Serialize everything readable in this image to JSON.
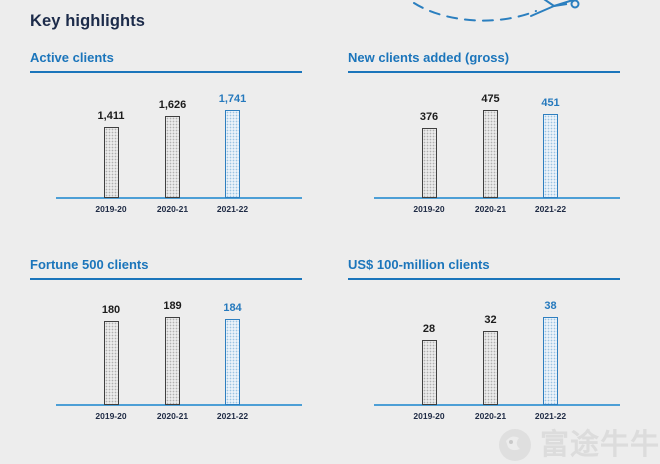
{
  "page": {
    "title": "Key highlights",
    "background": "#ededed"
  },
  "decoration": {
    "icon": "dashed-flight-path-plane-icon",
    "color": "#2b7fbf"
  },
  "watermark": {
    "text": "富途牛牛",
    "logo_icon": "futu-bull-logo-icon"
  },
  "colors": {
    "heading_navy": "#1c2b4a",
    "title_blue": "#1b75bb",
    "axis_blue": "#4d9fd6",
    "bar_outline_gray": "#3f3f3f",
    "bar_outline_blue": "#2e7fc0",
    "value_dark": "#1c1c1c",
    "value_blue": "#2579bd",
    "tick_dark": "#1e2a44"
  },
  "chart_data": [
    {
      "type": "bar",
      "title": "Active clients",
      "categories": [
        "2019-20",
        "2020-21",
        "2021-22"
      ],
      "values": [
        1411,
        1626,
        1741
      ],
      "value_labels": [
        "1,411",
        "1,626",
        "1,741"
      ],
      "highlight_index": 2,
      "ylim": [
        0,
        1741
      ],
      "grid": false,
      "legend": false
    },
    {
      "type": "bar",
      "title": "New clients added (gross)",
      "categories": [
        "2019-20",
        "2020-21",
        "2021-22"
      ],
      "values": [
        376,
        475,
        451
      ],
      "value_labels": [
        "376",
        "475",
        "451"
      ],
      "highlight_index": 2,
      "ylim": [
        0,
        475
      ],
      "grid": false,
      "legend": false
    },
    {
      "type": "bar",
      "title": "Fortune 500 clients",
      "categories": [
        "2019-20",
        "2020-21",
        "2021-22"
      ],
      "values": [
        180,
        189,
        184
      ],
      "value_labels": [
        "180",
        "189",
        "184"
      ],
      "highlight_index": 2,
      "ylim": [
        0,
        189
      ],
      "grid": false,
      "legend": false
    },
    {
      "type": "bar",
      "title": "US$ 100-million clients",
      "categories": [
        "2019-20",
        "2020-21",
        "2021-22"
      ],
      "values": [
        28,
        32,
        38
      ],
      "value_labels": [
        "28",
        "32",
        "38"
      ],
      "highlight_index": 2,
      "ylim": [
        0,
        38
      ],
      "grid": false,
      "legend": false
    }
  ]
}
